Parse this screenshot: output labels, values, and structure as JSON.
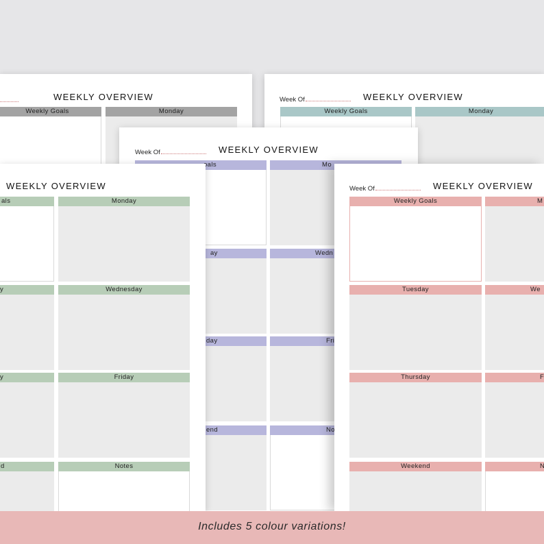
{
  "title": "WEEKLY OVERVIEW",
  "week_of": "Week Of",
  "labels": {
    "goals": "Weekly Goals",
    "goals_cut": "oals",
    "goals_cut_green": "als",
    "monday": "Monday",
    "monday_cut": "M",
    "monday_cut_purple": "Mo",
    "tuesday": "Tuesday",
    "tuesday_cut_green": "y",
    "tuesday_cut_purple": "ay",
    "wednesday": "Wednesday",
    "wednesday_cut_purple": "Wedn",
    "wednesday_cut_pink": "We",
    "thursday": "Thursday",
    "thursday_cut_green": "y",
    "thursday_cut_purple": "day",
    "friday": "Friday",
    "friday_cut_purple": "Fri",
    "friday_cut_pink": "F",
    "weekend": "Weekend",
    "weekend_cut_green": "d",
    "weekend_cut_purple": "end",
    "notes": "Notes",
    "notes_cut_purple": "No",
    "notes_cut_pink": "N"
  },
  "banner": "Includes 5 colour variations!",
  "colors": {
    "gray": "#a3a3a3",
    "teal": "#a9c7c7",
    "purple": "#b7b6dc",
    "green": "#b7cdb7",
    "pink": "#e8b0ae",
    "banner": "#e8b8b7",
    "cell": "#ebebeb"
  }
}
